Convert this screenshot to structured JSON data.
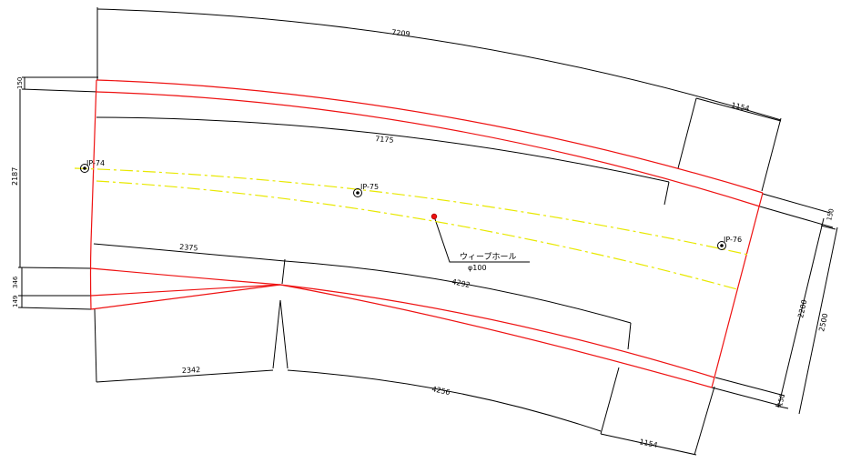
{
  "colors": {
    "outline": "#ee1111",
    "centerline": "#e8e800",
    "dimension": "#000000",
    "background": "#ffffff"
  },
  "dimensions": {
    "top_arc": "7209",
    "inner_top_arc": "7175",
    "right_top_short": "1154",
    "left_total": "2187",
    "left_top_thickness": "150",
    "left_mid": "346",
    "left_low": "149",
    "mid_left_upper": "2375",
    "mid_right_upper": "4292",
    "bottom_left": "2342",
    "bottom_right": "4256",
    "bottom_short": "1154",
    "right_top_thickness": "150",
    "right_inner": "2200",
    "right_total": "2500",
    "right_bottom_thickness": "150"
  },
  "markers": [
    {
      "label": "IP-74",
      "icon": "survey-point-icon"
    },
    {
      "label": "IP-75",
      "icon": "survey-point-icon"
    },
    {
      "label": "IP-76",
      "icon": "survey-point-icon"
    }
  ],
  "annotation": {
    "title": "ウィープホール",
    "size": "φ100",
    "icon": "weep-hole-icon"
  }
}
